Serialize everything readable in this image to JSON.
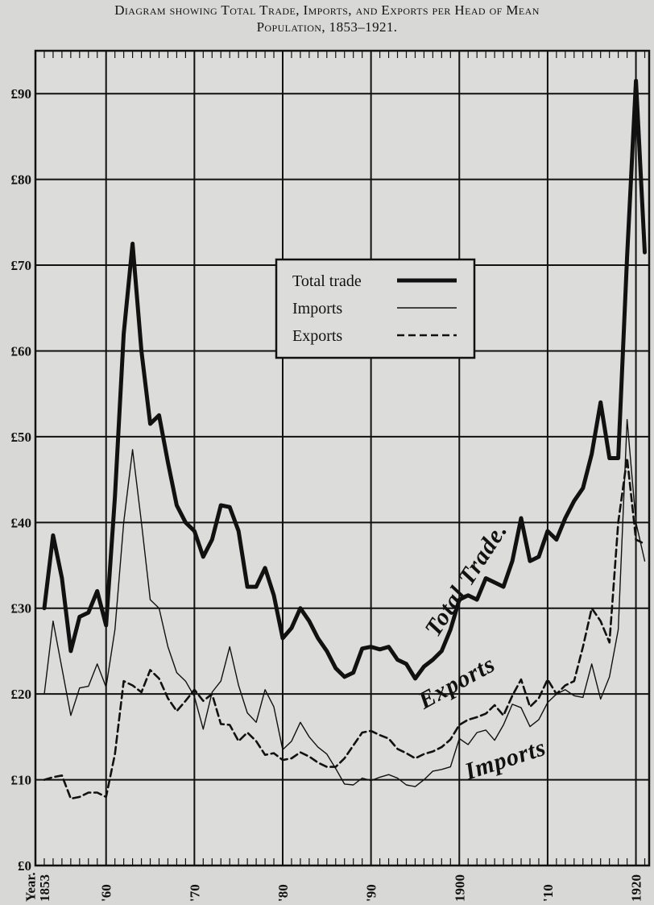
{
  "title_line1": "Diagram showing Total Trade, Imports, and Exports per Head of Mean",
  "title_line2": "Population, 1853–1921.",
  "chart_data": {
    "type": "line",
    "title": "Diagram showing Total Trade, Imports, and Exports per Head of Mean Population, 1853–1921.",
    "xlabel": "Year.",
    "ylabel": "",
    "xlim": [
      1852,
      1921.5
    ],
    "ylim": [
      0,
      95
    ],
    "grid": true,
    "legend_position": "center",
    "y_ticks": [
      {
        "value": 0,
        "label": "£0"
      },
      {
        "value": 10,
        "label": "£10"
      },
      {
        "value": 20,
        "label": "£20"
      },
      {
        "value": 30,
        "label": "£30"
      },
      {
        "value": 40,
        "label": "£40"
      },
      {
        "value": 50,
        "label": "£50"
      },
      {
        "value": 60,
        "label": "£60"
      },
      {
        "value": 70,
        "label": "£70"
      },
      {
        "value": 80,
        "label": "£80"
      },
      {
        "value": 90,
        "label": "£90"
      }
    ],
    "x_ticks": [
      {
        "value": 1853,
        "label": "1853"
      },
      {
        "value": 1860,
        "label": "'60"
      },
      {
        "value": 1870,
        "label": "'70"
      },
      {
        "value": 1880,
        "label": "'80"
      },
      {
        "value": 1890,
        "label": "'90"
      },
      {
        "value": 1900,
        "label": "1900"
      },
      {
        "value": 1910,
        "label": "'10"
      },
      {
        "value": 1920,
        "label": "1920"
      }
    ],
    "x_axis_caption": "Year.",
    "x": [
      1853,
      1854,
      1855,
      1856,
      1857,
      1858,
      1859,
      1860,
      1861,
      1862,
      1863,
      1864,
      1865,
      1866,
      1867,
      1868,
      1869,
      1870,
      1871,
      1872,
      1873,
      1874,
      1875,
      1876,
      1877,
      1878,
      1879,
      1880,
      1881,
      1882,
      1883,
      1884,
      1885,
      1886,
      1887,
      1888,
      1889,
      1890,
      1891,
      1892,
      1893,
      1894,
      1895,
      1896,
      1897,
      1898,
      1899,
      1900,
      1901,
      1902,
      1903,
      1904,
      1905,
      1906,
      1907,
      1908,
      1909,
      1910,
      1911,
      1912,
      1913,
      1914,
      1915,
      1916,
      1917,
      1918,
      1919,
      1920,
      1921
    ],
    "series": [
      {
        "name": "Total trade",
        "style": "thick",
        "values": [
          30,
          38.5,
          33.5,
          25,
          29,
          29.5,
          32,
          28,
          43,
          62,
          72.5,
          60,
          51.5,
          52.5,
          47,
          42,
          40,
          39,
          36,
          38,
          42,
          41.8,
          39,
          32.5,
          32.5,
          34.7,
          31.5,
          26.5,
          27.7,
          30,
          28.5,
          26.5,
          25,
          23,
          22,
          22.5,
          25.3,
          25.5,
          25.2,
          25.5,
          24,
          23.5,
          21.8,
          23.2,
          24,
          25,
          27.5,
          31,
          31.5,
          31,
          33.5,
          33,
          32.5,
          35.5,
          40.5,
          35.5,
          36,
          39,
          38,
          40.5,
          42.5,
          44,
          48,
          54,
          47.5,
          47.5,
          71,
          91.5,
          71.5
        ]
      },
      {
        "name": "Imports",
        "style": "thin",
        "values": [
          20,
          28.5,
          23,
          17.5,
          20.7,
          20.9,
          23.5,
          20.8,
          27.5,
          40,
          48.5,
          40,
          31,
          30,
          25.5,
          22.5,
          21.5,
          19.7,
          15.9,
          20.2,
          21.5,
          25.5,
          21,
          17.8,
          16.7,
          20.5,
          18.5,
          13.5,
          14.5,
          16.7,
          15,
          13.8,
          13,
          11.3,
          9.5,
          9.4,
          10.2,
          9.9,
          10.3,
          10.6,
          10.2,
          9.4,
          9.2,
          10,
          11,
          11.2,
          11.5,
          14.8,
          14.1,
          15.5,
          15.8,
          14.6,
          16.4,
          18.8,
          18.4,
          16.2,
          17,
          19,
          20,
          20.5,
          19.8,
          19.6,
          23.5,
          19.4,
          22,
          27.5,
          52,
          40,
          35.5
        ]
      },
      {
        "name": "Exports",
        "style": "dashed",
        "values": [
          10,
          10.3,
          10.5,
          7.8,
          8,
          8.5,
          8.5,
          8,
          13,
          21.5,
          21,
          20.2,
          22.8,
          21.8,
          19.5,
          18,
          19.2,
          20.5,
          19.2,
          20,
          16.5,
          16.4,
          14.5,
          15.5,
          14.5,
          12.9,
          13.1,
          12.3,
          12.5,
          13.2,
          12.7,
          12,
          11.5,
          11.5,
          12.5,
          14,
          15.5,
          15.7,
          15.2,
          14.8,
          13.6,
          13.1,
          12.5,
          13,
          13.3,
          13.8,
          14.7,
          16.4,
          17,
          17.3,
          17.7,
          18.7,
          17.5,
          19.8,
          21.7,
          18.5,
          19.5,
          21.7,
          20,
          21,
          21.5,
          25.5,
          30,
          28.5,
          26,
          40,
          47.5,
          38,
          37.5
        ]
      }
    ],
    "legend": [
      {
        "label": "Total trade",
        "style": "thick"
      },
      {
        "label": "Imports",
        "style": "thin"
      },
      {
        "label": "Exports",
        "style": "dashed"
      }
    ],
    "annotations": [
      {
        "text": "Total Trade.",
        "series": "Total trade"
      },
      {
        "text": "Exports",
        "series": "Exports"
      },
      {
        "text": "Imports",
        "series": "Imports"
      }
    ]
  }
}
